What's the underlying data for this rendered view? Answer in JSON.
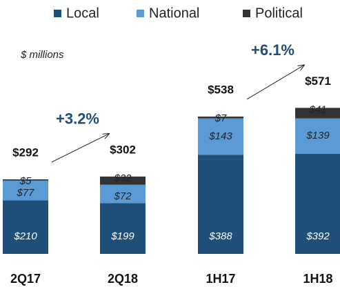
{
  "chart_data": {
    "type": "stacked_bar",
    "unit_label": "$ millions",
    "categories": [
      "2Q17",
      "2Q18",
      "1H17",
      "1H18"
    ],
    "series": [
      {
        "name": "Local",
        "color": "#1f4e79",
        "values": [
          210,
          199,
          388,
          392
        ],
        "value_labels": [
          "$210",
          "$199",
          "$388",
          "$392"
        ]
      },
      {
        "name": "National",
        "color": "#5b9bd5",
        "values": [
          77,
          72,
          143,
          139
        ],
        "value_labels": [
          "$77",
          "$72",
          "$143",
          "$139"
        ]
      },
      {
        "name": "Political",
        "color": "#333333",
        "values": [
          5,
          32,
          7,
          41
        ],
        "value_labels": [
          "$5",
          "$32",
          "$7",
          "$41"
        ]
      }
    ],
    "totals": [
      292,
      302,
      538,
      571
    ],
    "total_labels": [
      "$292",
      "$302",
      "$538",
      "$571"
    ],
    "annotations": [
      {
        "text": "+3.2%",
        "from": 0,
        "to": 1
      },
      {
        "text": "+6.1%",
        "from": 2,
        "to": 3
      }
    ],
    "legend": "top"
  }
}
